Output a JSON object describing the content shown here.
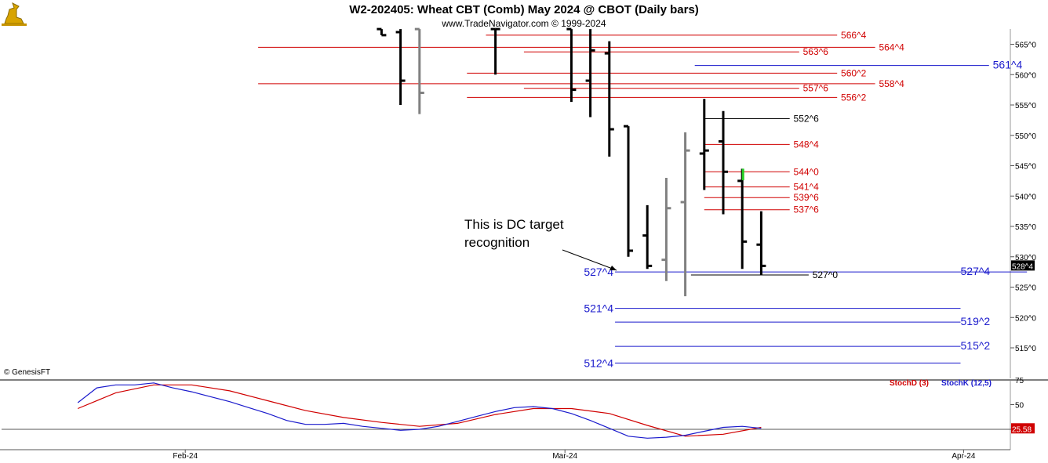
{
  "header": {
    "title": "W2-202405:  Wheat CBT (Comb) May 2024 @ CBOT  (Daily bars)",
    "subtitle": "www.TradeNavigator.com © 1999-2024"
  },
  "watermark": "© GenesisFT",
  "annotation": {
    "line1": "This is DC target",
    "line2": "recognition"
  },
  "colors": {
    "red_level": "#d00000",
    "blue_level": "#1a1acc",
    "black_level": "#000000",
    "stoch_d": "#d00000",
    "stoch_k": "#1a1acc",
    "bar": "#000000",
    "bar_inside": "#808080",
    "bar_highlight": "#22cc22"
  },
  "icons": {
    "logo": "gold-bull-logo-icon"
  },
  "chart_data": [
    {
      "type": "ohlc",
      "title": "W2-202405:  Wheat CBT (Comb) May 2024 @ CBOT  (Daily bars)",
      "ylim": [
        512,
        568
      ],
      "y_ticks": [
        {
          "v": 565,
          "label": "565^0"
        },
        {
          "v": 560,
          "label": "560^0"
        },
        {
          "v": 555,
          "label": "555^0"
        },
        {
          "v": 550,
          "label": "550^0"
        },
        {
          "v": 545,
          "label": "545^0"
        },
        {
          "v": 540,
          "label": "540^0"
        },
        {
          "v": 535,
          "label": "535^0"
        },
        {
          "v": 530,
          "label": "530^0"
        },
        {
          "v": 525,
          "label": "525^0"
        },
        {
          "v": 520,
          "label": "520^0"
        },
        {
          "v": 515,
          "label": "515^0"
        }
      ],
      "x_ticks": [
        {
          "t": 6,
          "label": "Feb-24"
        },
        {
          "t": 26,
          "label": "Mar-24"
        },
        {
          "t": 47,
          "label": "Apr-24"
        }
      ],
      "last_price": {
        "value": 528.5,
        "label": "528^4"
      },
      "bars": [
        {
          "t": 17,
          "high": 567.5,
          "low": 566.5,
          "open": 567.5,
          "close": 566.5,
          "color": "black"
        },
        {
          "t": 18,
          "high": 567.5,
          "low": 555,
          "open": 567,
          "close": 559,
          "color": "black"
        },
        {
          "t": 19,
          "high": 567.5,
          "low": 553.5,
          "open": 567.5,
          "close": 557,
          "color": "gray"
        },
        {
          "t": 23,
          "high": 567.5,
          "low": 560,
          "open": 567.5,
          "close": 567.5,
          "color": "black"
        },
        {
          "t": 27,
          "high": 567.5,
          "low": 555.5,
          "open": 567.5,
          "close": 557.5,
          "color": "black"
        },
        {
          "t": 28,
          "high": 567.5,
          "low": 553,
          "open": 559,
          "close": 564,
          "color": "black"
        },
        {
          "t": 29,
          "high": 565.5,
          "low": 546.5,
          "open": 563.5,
          "close": 551,
          "color": "black"
        },
        {
          "t": 30,
          "high": 551.5,
          "low": 530,
          "open": 551.5,
          "close": 531,
          "color": "black"
        },
        {
          "t": 31,
          "high": 538.5,
          "low": 528,
          "open": 533.5,
          "close": 528.5,
          "color": "black"
        },
        {
          "t": 32,
          "high": 543,
          "low": 526,
          "open": 529.5,
          "close": 538,
          "color": "gray"
        },
        {
          "t": 33,
          "high": 550.5,
          "low": 523.5,
          "open": 539,
          "close": 547.5,
          "color": "gray"
        },
        {
          "t": 34,
          "high": 556,
          "low": 541,
          "open": 547,
          "close": 547.5,
          "color": "black"
        },
        {
          "t": 35,
          "high": 554,
          "low": 537,
          "open": 549,
          "close": 544,
          "color": "black"
        },
        {
          "t": 36,
          "high": 544.5,
          "low": 528,
          "open": 542.5,
          "close": 532.5,
          "color": "black"
        },
        {
          "t": 37,
          "high": 537.5,
          "low": 527,
          "open": 532,
          "close": 528.5,
          "color": "black"
        }
      ],
      "levels": [
        {
          "value": 566.5,
          "label": "566^4",
          "color": "red",
          "t_start": 22.5,
          "t_end": 41,
          "label_t": 41.2
        },
        {
          "value": 564.5,
          "label": "564^4",
          "color": "red",
          "t_start": 10.5,
          "t_end": 43,
          "label_t": 43.2
        },
        {
          "value": 563.75,
          "label": "563^6",
          "color": "red",
          "t_start": 24.5,
          "t_end": 39,
          "label_t": 39.2
        },
        {
          "value": 561.5,
          "label": "561^4",
          "color": "blue",
          "t_start": 33.5,
          "t_end": 49,
          "label_t": 49.2
        },
        {
          "value": 560.25,
          "label": "560^2",
          "color": "red",
          "t_start": 21.5,
          "t_end": 41,
          "label_t": 41.2
        },
        {
          "value": 558.5,
          "label": "558^4",
          "color": "red",
          "t_start": 10.5,
          "t_end": 43,
          "label_t": 43.2
        },
        {
          "value": 557.75,
          "label": "557^6",
          "color": "red",
          "t_start": 24.5,
          "t_end": 39,
          "label_t": 39.2
        },
        {
          "value": 556.25,
          "label": "556^2",
          "color": "red",
          "t_start": 21.5,
          "t_end": 41,
          "label_t": 41.2
        },
        {
          "value": 552.75,
          "label": "552^6",
          "color": "black",
          "t_start": 34,
          "t_end": 38.5,
          "label_t": 38.7
        },
        {
          "value": 548.5,
          "label": "548^4",
          "color": "red",
          "t_start": 34,
          "t_end": 38.5,
          "label_t": 38.7
        },
        {
          "value": 544,
          "label": "544^0",
          "color": "red",
          "t_start": 34,
          "t_end": 38.5,
          "label_t": 38.7
        },
        {
          "value": 541.5,
          "label": "541^4",
          "color": "red",
          "t_start": 34,
          "t_end": 38.5,
          "label_t": 38.7
        },
        {
          "value": 539.75,
          "label": "539^6",
          "color": "red",
          "t_start": 34,
          "t_end": 38.5,
          "label_t": 38.7
        },
        {
          "value": 537.75,
          "label": "537^6",
          "color": "red",
          "t_start": 34,
          "t_end": 38.5,
          "label_t": 38.7
        },
        {
          "value": 527.5,
          "label": "527^4",
          "color": "blue",
          "t_start": 29.3,
          "t_end": 51,
          "label_t": 47.5,
          "left_label": "527^4"
        },
        {
          "value": 527,
          "label": "527^0",
          "color": "black",
          "t_start": 33.3,
          "t_end": 39.5,
          "label_t": 39.7
        },
        {
          "value": 521.5,
          "label": "521^4",
          "color": "blue",
          "t_start": 29.3,
          "t_end": 47.5,
          "label_t": null,
          "left_label": "521^4"
        },
        {
          "value": 519.25,
          "label": "519^2",
          "color": "blue",
          "t_start": 29.3,
          "t_end": 47.5,
          "label_t": 47.5
        },
        {
          "value": 515.25,
          "label": "515^2",
          "color": "blue",
          "t_start": 29.3,
          "t_end": 47.5,
          "label_t": 47.5
        },
        {
          "value": 512.5,
          "label": "512^4",
          "color": "blue",
          "t_start": 29.3,
          "t_end": 47.5,
          "label_t": null,
          "left_label": "512^4"
        }
      ]
    },
    {
      "type": "line",
      "series": [
        {
          "name": "StochD (3)",
          "color": "red",
          "x": [
            1,
            3,
            5,
            7,
            9,
            11,
            13,
            15,
            17,
            19,
            21,
            23,
            25,
            27,
            29,
            31,
            33,
            35,
            37
          ],
          "values": [
            46,
            62,
            70,
            70,
            64,
            54,
            44,
            37,
            32,
            28,
            31,
            40,
            46,
            46,
            41,
            29,
            18,
            20,
            27
          ]
        },
        {
          "name": "StochK (12,5)",
          "color": "blue",
          "x": [
            1,
            2,
            3,
            4,
            5,
            6,
            7,
            8,
            9,
            10,
            11,
            12,
            13,
            14,
            15,
            16,
            17,
            18,
            19,
            20,
            21,
            22,
            23,
            24,
            25,
            26,
            27,
            28,
            29,
            30,
            31,
            32,
            33,
            34,
            35,
            36,
            37
          ],
          "values": [
            52,
            67,
            70,
            70,
            72,
            67,
            63,
            58,
            53,
            47,
            41,
            34,
            30,
            30,
            31,
            28,
            26,
            24,
            25,
            28,
            33,
            38,
            43,
            47,
            48,
            46,
            41,
            34,
            26,
            18,
            16,
            17,
            19,
            23,
            27,
            28,
            26
          ]
        }
      ],
      "ylim": [
        0,
        100
      ],
      "y_ticks": [
        {
          "v": 75,
          "label": "75"
        },
        {
          "v": 50,
          "label": "50"
        },
        {
          "v": 25,
          "label": "25"
        }
      ],
      "reference_line": 25,
      "last_value": {
        "value": 25.58,
        "label": "25.58"
      },
      "legend": [
        "StochD (3)",
        "StochK (12,5)"
      ]
    }
  ]
}
